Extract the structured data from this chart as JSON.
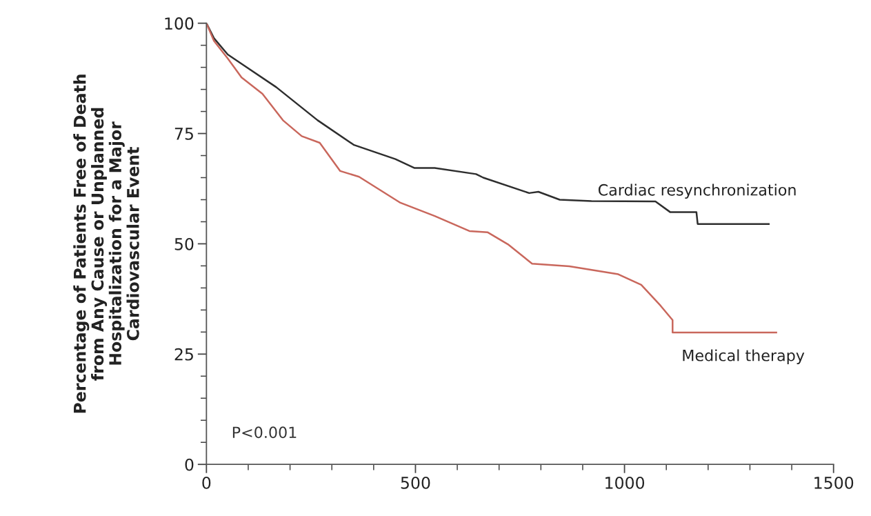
{
  "chart_data": {
    "type": "line",
    "ylabel": "Percentage of Patients Free of Death\nfrom Any Cause or Unplanned\nHospitalization for a Major\nCardiovascular Event",
    "series": [
      {
        "name": "Cardiac resynchronization",
        "color": "#2e2e2e",
        "x": [
          0,
          18,
          51,
          84,
          167,
          266,
          353,
          452,
          497,
          546,
          645,
          662,
          772,
          794,
          845,
          921,
          1074,
          1109,
          1172,
          1175,
          1345
        ],
        "values": [
          100,
          96.6,
          92.9,
          90.8,
          85.5,
          78,
          72.4,
          69.2,
          67.2,
          67.2,
          65.8,
          65,
          61.5,
          61.8,
          60,
          59.7,
          59.6,
          57.2,
          57.2,
          54.5,
          54.5
        ]
      },
      {
        "name": "Medical therapy",
        "color": "#c9675c",
        "x": [
          0,
          18,
          51,
          84,
          134,
          183,
          228,
          271,
          320,
          365,
          464,
          546,
          629,
          673,
          721,
          779,
          868,
          985,
          1040,
          1086,
          1115,
          1115,
          1363
        ],
        "values": [
          100,
          96,
          92,
          87.7,
          84,
          78,
          74.4,
          72.9,
          66.5,
          65.2,
          59.3,
          56.3,
          52.9,
          52.6,
          49.9,
          45.5,
          44.9,
          43.1,
          40.7,
          36,
          32.7,
          29.9,
          29.9
        ]
      }
    ],
    "annotations": [
      {
        "text": "P<0.001"
      }
    ],
    "xlim": [
      0,
      1500
    ],
    "xticks": [
      0,
      {
        "value": 100,
        "label": null
      },
      {
        "value": 200,
        "label": null
      },
      {
        "value": 300,
        "label": null
      },
      {
        "value": 400,
        "label": null
      },
      500,
      {
        "value": 600,
        "label": null
      },
      {
        "value": 700,
        "label": null
      },
      {
        "value": 800,
        "label": null
      },
      {
        "value": 900,
        "label": null
      },
      1000,
      {
        "value": 1100,
        "label": null
      },
      {
        "value": 1200,
        "label": null
      },
      {
        "value": 1300,
        "label": null
      },
      {
        "value": 1400,
        "label": null
      },
      1500
    ],
    "ylim": [
      0,
      100
    ],
    "yticks": [
      0,
      {
        "value": 5,
        "label": null
      },
      {
        "value": 10,
        "label": null
      },
      {
        "value": 15,
        "label": null
      },
      {
        "value": 20,
        "label": null
      },
      25,
      {
        "value": 30,
        "label": null
      },
      {
        "value": 35,
        "label": null
      },
      {
        "value": 40,
        "label": null
      },
      {
        "value": 45,
        "label": null
      },
      50,
      {
        "value": 55,
        "label": null
      },
      {
        "value": 60,
        "label": null
      },
      {
        "value": 65,
        "label": null
      },
      {
        "value": 70,
        "label": null
      },
      75,
      {
        "value": 80,
        "label": null
      },
      {
        "value": 85,
        "label": null
      },
      {
        "value": 90,
        "label": null
      },
      {
        "value": 95,
        "label": null
      },
      100
    ],
    "grid": false,
    "legend": false,
    "marker": "none",
    "line_style": "solid"
  }
}
